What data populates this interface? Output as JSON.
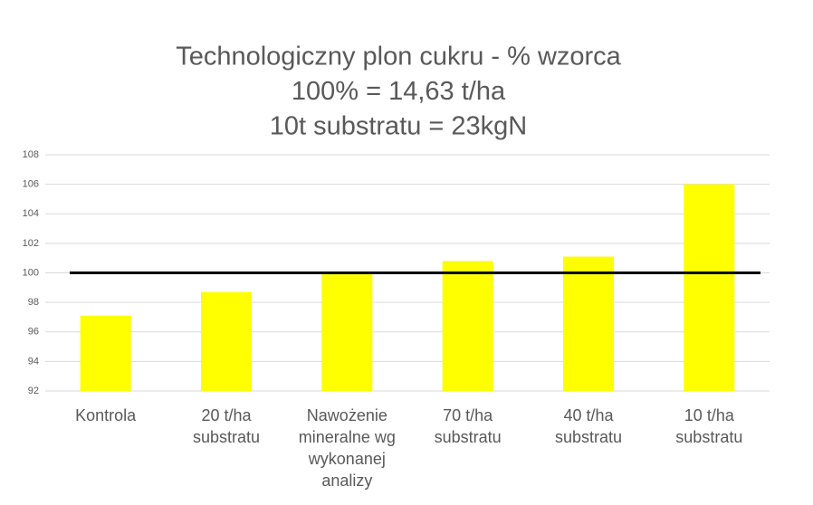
{
  "chart_data": {
    "type": "bar",
    "title": [
      "Technologiczny plon cukru - % wzorca",
      "100% = 14,63 t/ha",
      "10t substratu = 23kgN"
    ],
    "categories": [
      "Kontrola",
      "20 t/ha substratu",
      "Nawożenie mineralne wg wykonanej analizy",
      "70 t/ha substratu",
      "40 t/ha substratu",
      "10 t/ha substratu"
    ],
    "values": [
      97.1,
      98.7,
      100,
      100.8,
      101.1,
      106.0
    ],
    "color": "#ffff00",
    "reference_line": 100,
    "reference_color": "#000000",
    "ylim": [
      92,
      108
    ],
    "yticks": [
      92,
      94,
      96,
      98,
      100,
      102,
      104,
      106,
      108
    ],
    "grid": true
  }
}
